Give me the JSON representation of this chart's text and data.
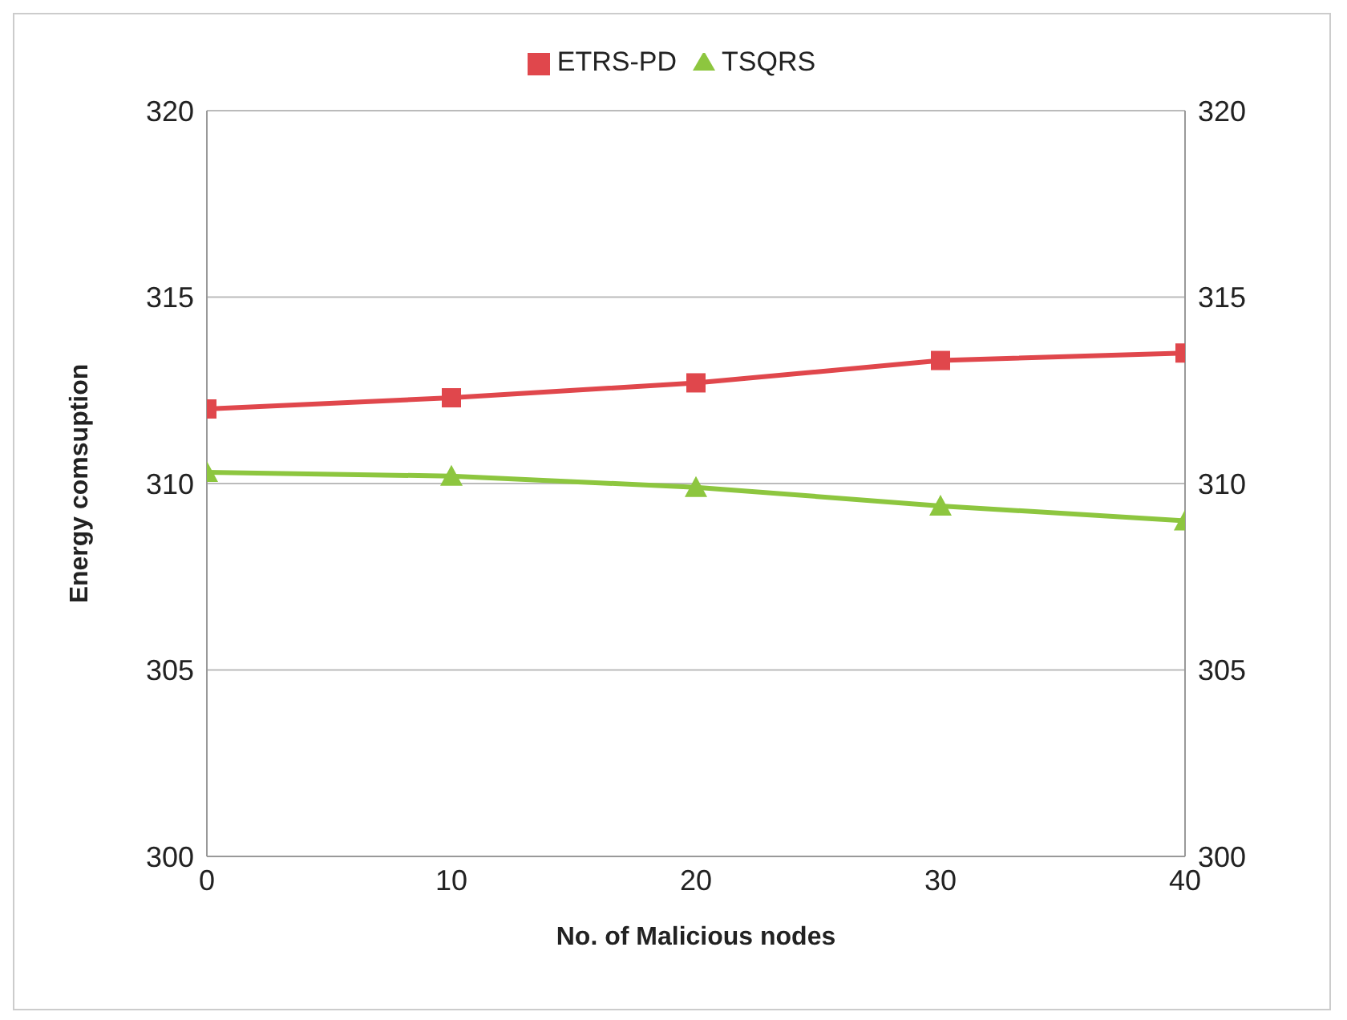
{
  "chart_data": {
    "type": "line",
    "xlabel": "No. of Malicious nodes",
    "ylabel": "Energy comsuption",
    "x": [
      0,
      10,
      20,
      30,
      40
    ],
    "series": [
      {
        "name": "ETRS-PD",
        "color": "#e0474c",
        "marker": "square",
        "values": [
          312,
          312.3,
          312.7,
          313.3,
          313.5
        ]
      },
      {
        "name": "TSQRS",
        "color": "#8dc63f",
        "marker": "triangle",
        "values": [
          310.3,
          310.2,
          309.9,
          309.4,
          309
        ]
      }
    ],
    "xlim": [
      0,
      40
    ],
    "xticks": [
      0,
      10,
      20,
      30,
      40
    ],
    "ylim": [
      300,
      320
    ],
    "yticks": [
      300,
      305,
      310,
      315,
      320
    ],
    "y2lim": [
      300,
      320
    ],
    "y2ticks": [
      300,
      305,
      310,
      315,
      320
    ],
    "grid": "y",
    "legend": "top",
    "line_style": "solid"
  }
}
